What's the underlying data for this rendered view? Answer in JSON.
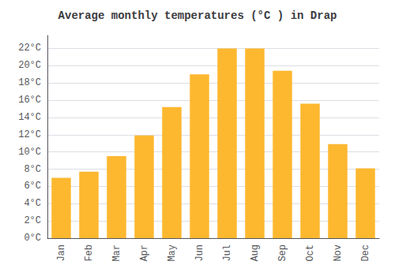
{
  "chart_data": {
    "type": "bar",
    "title": "Average monthly temperatures (°C ) in Drap",
    "categories": [
      "Jan",
      "Feb",
      "Mar",
      "Apr",
      "May",
      "Jun",
      "Jul",
      "Aug",
      "Sep",
      "Oct",
      "Nov",
      "Dec"
    ],
    "values": [
      7.0,
      7.7,
      9.5,
      11.9,
      15.2,
      19.0,
      22.0,
      22.0,
      19.4,
      15.6,
      10.9,
      8.1
    ],
    "color": "#FDB830",
    "ylim": [
      0,
      23.5
    ],
    "yticks": [
      {
        "value": 0,
        "label": "0°C"
      },
      {
        "value": 2,
        "label": "2°C"
      },
      {
        "value": 4,
        "label": "4°C"
      },
      {
        "value": 6,
        "label": "6°C"
      },
      {
        "value": 8,
        "label": "8°C"
      },
      {
        "value": 10,
        "label": "10°C"
      },
      {
        "value": 12,
        "label": "12°C"
      },
      {
        "value": 14,
        "label": "14°C"
      },
      {
        "value": 16,
        "label": "16°C"
      },
      {
        "value": 18,
        "label": "18°C"
      },
      {
        "value": 20,
        "label": "20°C"
      },
      {
        "value": 22,
        "label": "22°C"
      }
    ],
    "grid": true
  }
}
